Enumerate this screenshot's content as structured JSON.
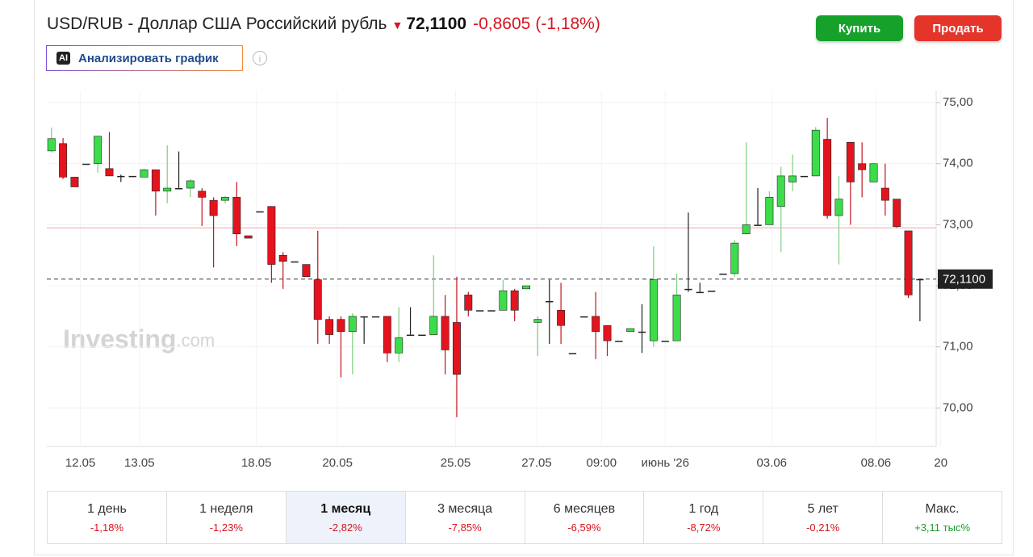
{
  "header": {
    "title": "USD/RUB - Доллар США Российский рубль",
    "price": "72,1100",
    "change": "-0,8605",
    "change_pct": "(-1,18%)"
  },
  "buttons": {
    "buy": "Купить",
    "sell": "Продать",
    "ai_badge": "AI",
    "analyze": "Анализировать график"
  },
  "watermark": {
    "brand": "Investing",
    "suffix": ".com"
  },
  "chart_data": {
    "type": "candlestick",
    "up_color": "#3ddc4b",
    "down_color": "#e3141e",
    "doji_color": "#222222",
    "open": [
      74.21,
      74.33,
      73.78,
      74.0,
      74.0,
      73.92,
      73.8,
      73.8,
      73.78,
      73.9,
      73.55,
      73.6,
      73.6,
      73.55,
      73.4,
      73.4,
      73.45,
      72.82,
      73.22,
      73.3,
      72.5,
      72.4,
      72.35,
      72.1,
      71.45,
      71.45,
      71.25,
      71.5,
      71.5,
      71.5,
      70.9,
      71.2,
      71.2,
      71.2,
      71.5,
      71.4,
      71.85,
      71.6,
      71.6,
      71.6,
      71.92,
      71.95,
      71.4,
      71.75,
      71.6,
      70.9,
      71.5,
      71.5,
      71.35,
      71.1,
      71.25,
      71.25,
      71.1,
      71.1,
      71.1,
      71.95,
      71.9,
      71.92,
      72.2,
      72.2,
      72.85,
      73.0,
      73.0,
      73.3,
      73.7,
      73.8,
      73.8,
      74.4,
      73.15,
      74.35,
      74.0,
      73.7,
      73.6,
      73.42,
      72.9,
      72.11
    ],
    "high": [
      74.59,
      74.42,
      73.78,
      74.0,
      74.45,
      74.52,
      73.82,
      73.8,
      73.92,
      73.9,
      74.3,
      74.2,
      73.75,
      73.6,
      73.45,
      73.47,
      73.7,
      72.82,
      73.22,
      73.3,
      72.55,
      72.4,
      72.35,
      72.9,
      71.5,
      71.5,
      71.55,
      71.5,
      71.5,
      71.5,
      71.65,
      71.65,
      71.2,
      72.5,
      71.85,
      72.15,
      71.9,
      71.6,
      71.6,
      72.1,
      71.95,
      72.0,
      71.5,
      72.1,
      72.05,
      70.9,
      71.5,
      71.9,
      71.35,
      71.1,
      71.3,
      71.7,
      72.65,
      71.1,
      72.2,
      73.2,
      72.05,
      71.92,
      72.2,
      72.75,
      74.35,
      73.6,
      73.55,
      73.95,
      74.15,
      73.8,
      74.6,
      74.75,
      73.8,
      74.35,
      74.35,
      74.0,
      74.0,
      73.42,
      72.9,
      72.11
    ],
    "low": [
      74.18,
      73.75,
      73.62,
      74.0,
      73.85,
      73.8,
      73.7,
      73.8,
      73.78,
      73.15,
      73.35,
      73.6,
      73.45,
      72.98,
      72.3,
      73.35,
      72.65,
      72.78,
      73.22,
      72.05,
      71.95,
      72.4,
      72.15,
      71.05,
      71.05,
      70.5,
      70.55,
      71.05,
      71.5,
      70.75,
      70.75,
      71.2,
      71.2,
      71.2,
      70.55,
      69.85,
      71.5,
      71.6,
      71.6,
      71.6,
      71.42,
      71.95,
      70.85,
      71.05,
      71.05,
      70.9,
      71.5,
      70.8,
      70.85,
      71.1,
      71.25,
      70.9,
      71.0,
      71.1,
      71.1,
      71.9,
      71.9,
      71.92,
      72.2,
      72.15,
      72.85,
      73.0,
      73.0,
      72.55,
      73.55,
      73.8,
      73.8,
      73.1,
      72.35,
      73.0,
      73.45,
      73.7,
      73.15,
      72.95,
      71.8,
      71.42
    ],
    "close": [
      74.41,
      73.78,
      73.62,
      74.0,
      74.45,
      73.8,
      73.8,
      73.8,
      73.9,
      73.55,
      73.6,
      73.6,
      73.72,
      73.45,
      73.15,
      73.45,
      72.85,
      72.78,
      73.22,
      72.35,
      72.4,
      72.4,
      72.15,
      71.45,
      71.2,
      71.25,
      71.5,
      71.5,
      71.5,
      70.9,
      71.15,
      71.2,
      71.2,
      71.5,
      70.95,
      70.55,
      71.6,
      71.6,
      71.6,
      71.92,
      71.6,
      72.0,
      71.45,
      71.75,
      71.35,
      70.9,
      71.5,
      71.25,
      71.1,
      71.1,
      71.3,
      71.25,
      72.1,
      71.1,
      71.85,
      71.95,
      71.9,
      71.92,
      72.2,
      72.7,
      73.0,
      73.0,
      73.45,
      73.8,
      73.8,
      73.8,
      74.55,
      73.15,
      73.42,
      73.7,
      73.9,
      74.0,
      73.4,
      72.97,
      71.85,
      72.11
    ],
    "xlim": [
      -0.4,
      76.4
    ],
    "xticks": [
      {
        "value": 2.5,
        "label": "12.05"
      },
      {
        "value": 7.6,
        "label": "13.05"
      },
      {
        "value": 17.7,
        "label": "18.05"
      },
      {
        "value": 24.7,
        "label": "20.05"
      },
      {
        "value": 34.9,
        "label": "25.05"
      },
      {
        "value": 41.9,
        "label": "27.05"
      },
      {
        "value": 47.5,
        "label": "09:00"
      },
      {
        "value": 53.0,
        "label": "июнь '26"
      },
      {
        "value": 62.2,
        "label": "03.06"
      },
      {
        "value": 71.2,
        "label": "08.06"
      },
      {
        "value": 76.8,
        "label": "20"
      }
    ],
    "ylim": [
      69.37,
      75.2
    ],
    "yticks": [
      {
        "value": 70,
        "label": "70,00"
      },
      {
        "value": 71,
        "label": "71,00"
      },
      {
        "value": 72,
        "label": "72,00"
      },
      {
        "value": 73,
        "label": "73,00"
      },
      {
        "value": 74,
        "label": "74,00"
      },
      {
        "value": 75,
        "label": "75,00"
      }
    ],
    "reference_line": 72.95,
    "current": {
      "value": 72.11,
      "label": "72,1100"
    },
    "grid": true
  },
  "periods": [
    {
      "label": "1 день",
      "change": "-1,18%"
    },
    {
      "label": "1 неделя",
      "change": "-1,23%"
    },
    {
      "label": "1 месяц",
      "change": "-2,82%"
    },
    {
      "label": "3 месяца",
      "change": "-7,85%"
    },
    {
      "label": "6 месяцев",
      "change": "-6,59%"
    },
    {
      "label": "1 год",
      "change": "-8,72%"
    },
    {
      "label": "5 лет",
      "change": "-0,21%"
    },
    {
      "label": "Макс.",
      "change": "+3,11 тыс%"
    }
  ],
  "selected_period": 2
}
